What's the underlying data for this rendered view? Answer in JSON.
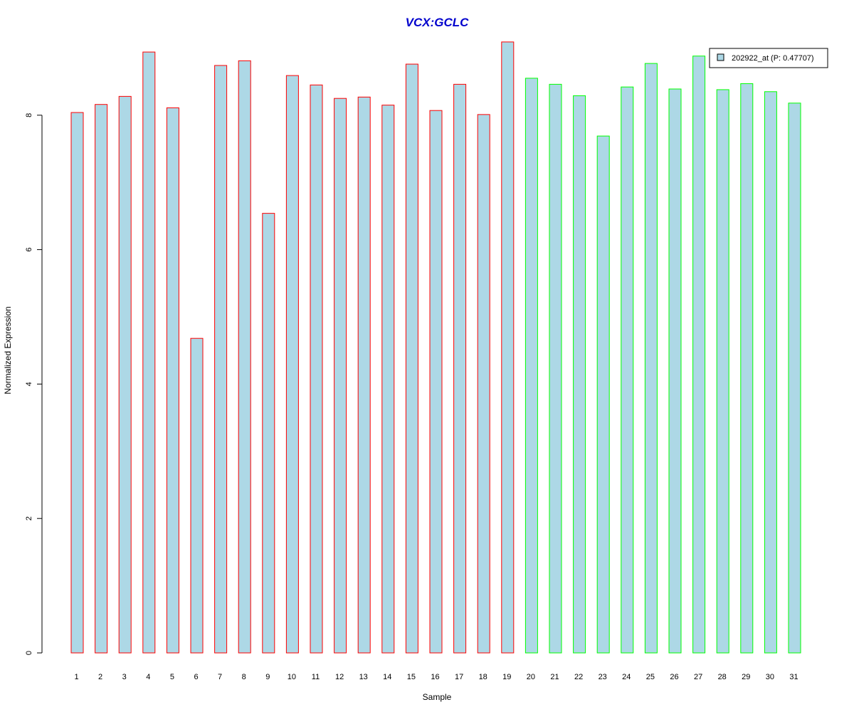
{
  "chart_data": {
    "type": "bar",
    "title": "VCX:GCLC",
    "xlabel": "Sample",
    "ylabel": "Normalized Expression",
    "ylim": [
      0,
      9.2
    ],
    "yticks": [
      "0",
      "2",
      "4",
      "6",
      "8"
    ],
    "categories": [
      "1",
      "2",
      "3",
      "4",
      "5",
      "6",
      "7",
      "8",
      "9",
      "10",
      "11",
      "12",
      "13",
      "14",
      "15",
      "16",
      "17",
      "18",
      "19",
      "20",
      "21",
      "22",
      "23",
      "24",
      "25",
      "26",
      "27",
      "28",
      "29",
      "30",
      "31"
    ],
    "series": [
      {
        "name": "202922_at (P: 0.47707)",
        "values": [
          8.04,
          8.16,
          8.28,
          8.94,
          8.11,
          4.68,
          8.74,
          8.81,
          6.54,
          8.59,
          8.45,
          8.25,
          8.27,
          8.15,
          8.76,
          8.07,
          8.46,
          8.01,
          9.09,
          8.55,
          8.46,
          8.29,
          7.69,
          8.42,
          8.77,
          8.39,
          8.88,
          8.38,
          8.47,
          8.35,
          8.18
        ]
      }
    ],
    "groups": [
      {
        "from": 1,
        "to": 19,
        "border_color": "#ff0000"
      },
      {
        "from": 20,
        "to": 31,
        "border_color": "#00ff00"
      }
    ],
    "bar_fill": "#add8e6",
    "title_color": "#0000cd",
    "legend_position": "top-right",
    "grid": false
  }
}
